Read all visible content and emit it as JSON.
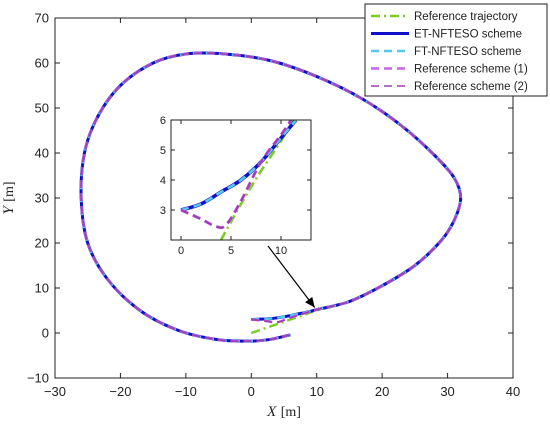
{
  "chart_data": {
    "type": "line",
    "title": "",
    "xlabel": "X",
    "xlabel_unit": "[m]",
    "ylabel": "Y",
    "ylabel_unit": "[m]",
    "xlim": [
      -30,
      40
    ],
    "ylim": [
      -10,
      70
    ],
    "xticks": [
      -30,
      -20,
      -10,
      0,
      10,
      20,
      30,
      40
    ],
    "yticks": [
      -10,
      0,
      10,
      20,
      30,
      40,
      50,
      60,
      70
    ],
    "grid": false,
    "legend_position": "top-right",
    "series": [
      {
        "name": "Reference trajectory",
        "color": "#7ccd23",
        "dash": "dashdot",
        "start": [
          [
            0,
            0
          ],
          [
            4,
            2
          ],
          [
            8,
            4
          ],
          [
            10,
            5
          ]
        ]
      },
      {
        "name": "ET-NFTESO scheme",
        "color": "#1010c8",
        "dash": "solid",
        "start": [
          [
            0,
            3
          ],
          [
            3,
            3.2
          ],
          [
            5,
            3.6
          ],
          [
            7,
            4.2
          ],
          [
            9,
            4.8
          ],
          [
            10,
            5.2
          ]
        ]
      },
      {
        "name": "FT-NFTESO scheme",
        "color": "#58c8f0",
        "dash": "dashed",
        "start": [
          [
            0,
            3
          ],
          [
            3,
            3.2
          ],
          [
            5,
            3.6
          ],
          [
            7,
            4.2
          ],
          [
            9,
            4.8
          ],
          [
            10,
            5.2
          ]
        ]
      },
      {
        "name": "Reference scheme (1)",
        "color": "#c864e8",
        "dash": "dashed",
        "start": [
          [
            0,
            3
          ],
          [
            2.5,
            2.6
          ],
          [
            4,
            2.4
          ],
          [
            6,
            3.4
          ],
          [
            8,
            4.3
          ],
          [
            10,
            5.2
          ]
        ]
      },
      {
        "name": "Reference scheme (2)",
        "color": "#9b3fb0",
        "dash": "dashed",
        "start": [
          [
            0,
            3
          ],
          [
            2.5,
            2.6
          ],
          [
            4,
            2.4
          ],
          [
            6,
            3.4
          ],
          [
            8,
            4.3
          ],
          [
            10,
            5.2
          ]
        ]
      }
    ],
    "shared_path": [
      [
        10,
        5
      ],
      [
        15,
        7
      ],
      [
        20,
        10.5
      ],
      [
        25,
        15
      ],
      [
        29,
        20.5
      ],
      [
        31,
        25
      ],
      [
        32,
        30
      ],
      [
        31,
        34.5
      ],
      [
        28,
        39.5
      ],
      [
        23,
        46
      ],
      [
        17,
        52
      ],
      [
        10,
        57
      ],
      [
        3,
        60.5
      ],
      [
        -4,
        62
      ],
      [
        -10,
        62
      ],
      [
        -15,
        60
      ],
      [
        -20,
        55
      ],
      [
        -23.5,
        48
      ],
      [
        -25.5,
        40
      ],
      [
        -26,
        30
      ],
      [
        -25,
        20
      ],
      [
        -22,
        12
      ],
      [
        -17,
        5
      ],
      [
        -11,
        0.5
      ],
      [
        -5,
        -1.5
      ],
      [
        0,
        -1.8
      ],
      [
        3,
        -1.4
      ],
      [
        6,
        -0.4
      ]
    ],
    "inset": {
      "xlim": [
        -1,
        13
      ],
      "ylim": [
        2,
        6
      ],
      "xticks": [
        0,
        5,
        10
      ],
      "yticks": [
        3,
        4,
        5,
        6
      ],
      "series": [
        {
          "name": "Reference trajectory",
          "points": [
            [
              4,
              2
            ],
            [
              6,
              3.2
            ],
            [
              8,
              4.3
            ],
            [
              10,
              5.3
            ],
            [
              11.2,
              6
            ]
          ]
        },
        {
          "name": "ET-NFTESO scheme",
          "points": [
            [
              0,
              3
            ],
            [
              2,
              3.2
            ],
            [
              4,
              3.6
            ],
            [
              6,
              4
            ],
            [
              8,
              4.6
            ],
            [
              10,
              5.4
            ],
            [
              11.5,
              6
            ]
          ]
        },
        {
          "name": "FT-NFTESO scheme",
          "points": [
            [
              0,
              3
            ],
            [
              2,
              3.2
            ],
            [
              4,
              3.6
            ],
            [
              6,
              4
            ],
            [
              8,
              4.6
            ],
            [
              10,
              5.4
            ],
            [
              11.5,
              6
            ]
          ]
        },
        {
          "name": "Reference scheme (1)",
          "points": [
            [
              0,
              3
            ],
            [
              2,
              2.7
            ],
            [
              3.5,
              2.45
            ],
            [
              4.5,
              2.5
            ],
            [
              6,
              3.3
            ],
            [
              8,
              4.6
            ],
            [
              10,
              5.5
            ],
            [
              11,
              6
            ]
          ]
        },
        {
          "name": "Reference scheme (2)",
          "points": [
            [
              0,
              3
            ],
            [
              2,
              2.7
            ],
            [
              3.5,
              2.45
            ],
            [
              4.5,
              2.5
            ],
            [
              6,
              3.3
            ],
            [
              8,
              4.6
            ],
            [
              10,
              5.5
            ],
            [
              11,
              6
            ]
          ]
        }
      ],
      "arrow_to": [
        10,
        5
      ]
    }
  }
}
